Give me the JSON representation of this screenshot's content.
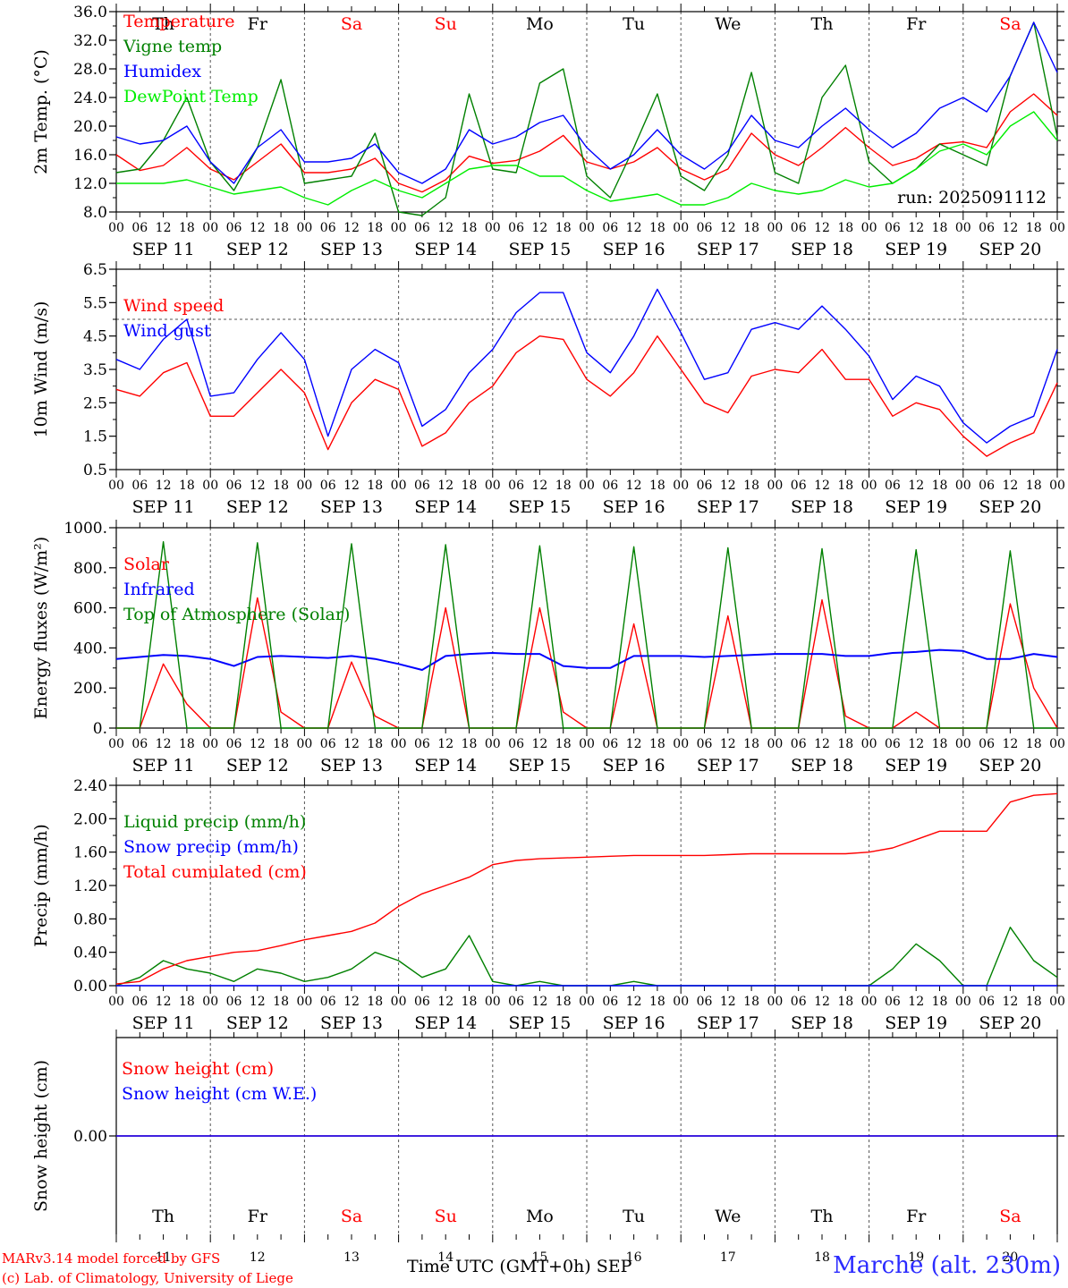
{
  "meta": {
    "run": "run: 2025091112",
    "station": "Marche (alt. 230m)",
    "credit_line1": "MARv3.14 model forced by GFS",
    "credit_line2": "(c) Lab. of Climatology, University of Liege",
    "x_title": "Time UTC (GMT+0h)",
    "x_month": "SEP"
  },
  "colors": {
    "red": "#ff0000",
    "dark_green": "#008000",
    "blue": "#0000ff",
    "light_green": "#00ee00",
    "weekend": "#ff0000"
  },
  "days": [
    {
      "abbr": "Th",
      "date": "SEP 11",
      "num": "11",
      "weekend": false
    },
    {
      "abbr": "Fr",
      "date": "SEP 12",
      "num": "12",
      "weekend": false
    },
    {
      "abbr": "Sa",
      "date": "SEP 13",
      "num": "13",
      "weekend": true
    },
    {
      "abbr": "Su",
      "date": "SEP 14",
      "num": "14",
      "weekend": true
    },
    {
      "abbr": "Mo",
      "date": "SEP 15",
      "num": "15",
      "weekend": false
    },
    {
      "abbr": "Tu",
      "date": "SEP 16",
      "num": "16",
      "weekend": false
    },
    {
      "abbr": "We",
      "date": "SEP 17",
      "num": "17",
      "weekend": false
    },
    {
      "abbr": "Th",
      "date": "SEP 18",
      "num": "18",
      "weekend": false
    },
    {
      "abbr": "Fr",
      "date": "SEP 19",
      "num": "19",
      "weekend": false
    },
    {
      "abbr": "Sa",
      "date": "SEP 20",
      "num": "20",
      "weekend": true
    }
  ],
  "hour_labels": [
    "00",
    "06",
    "12",
    "18"
  ],
  "chart_data": [
    {
      "id": "temp",
      "type": "line",
      "ylabel": "2m Temp. (°C)",
      "ylim": [
        8,
        36
      ],
      "yticks": [
        "8.0",
        "12.0",
        "16.0",
        "20.0",
        "24.0",
        "28.0",
        "32.0",
        "36.0"
      ],
      "x": {
        "start": "2025-09-11 00:00",
        "end": "2025-09-21 00:00",
        "step_hours": 6
      },
      "series": [
        {
          "name": "Temperature",
          "color": "red",
          "values": [
            16,
            13.8,
            14.5,
            17,
            14,
            12.5,
            15,
            17.5,
            13.5,
            13.5,
            14,
            15.5,
            12,
            10.8,
            12.5,
            15.8,
            14.8,
            15.2,
            16.5,
            18.7,
            15,
            14,
            15,
            17,
            14,
            12.5,
            14,
            19,
            16,
            14.5,
            17,
            19.8,
            17,
            14.5,
            15.5,
            17.5,
            17.8,
            17,
            22,
            24.5,
            21.5
          ]
        },
        {
          "name": "Vigne temp",
          "color": "dark_green",
          "values": [
            13.5,
            14,
            18,
            24,
            15,
            11,
            17,
            26.5,
            12,
            12.5,
            13,
            19,
            8,
            7.5,
            10,
            24.5,
            14,
            13.5,
            26,
            28,
            13,
            10,
            17,
            24.5,
            13,
            11,
            16,
            27.5,
            13.5,
            12,
            24,
            28.5,
            15,
            12,
            14,
            17.5,
            16,
            14.5,
            27,
            34.5,
            18.5
          ]
        },
        {
          "name": "Humidex",
          "color": "blue",
          "values": [
            18.5,
            17.5,
            18,
            20,
            15,
            12,
            17,
            19.5,
            15,
            15,
            15.5,
            17.5,
            13.5,
            12,
            14,
            19.5,
            17.5,
            18.5,
            20.5,
            21.5,
            17,
            14,
            16,
            19.5,
            16,
            14,
            16.5,
            21.5,
            18,
            17,
            20,
            22.5,
            19.5,
            17,
            19,
            22.5,
            24,
            22,
            27,
            34.5,
            27.5
          ]
        },
        {
          "name": "DewPoint Temp",
          "color": "light_green",
          "values": [
            12,
            12,
            12,
            12.5,
            11.5,
            10.5,
            11,
            11.5,
            10,
            9,
            11,
            12.5,
            11,
            10,
            12,
            14,
            14.5,
            14.5,
            13,
            13,
            11,
            9.5,
            10,
            10.5,
            9,
            9,
            10,
            12,
            11,
            10.5,
            11,
            12.5,
            11.5,
            12,
            14,
            16.5,
            17.5,
            16,
            20,
            22,
            18
          ]
        }
      ]
    },
    {
      "id": "wind",
      "type": "line",
      "ylabel": "10m Wind (m/s)",
      "ylim": [
        0.5,
        6.5
      ],
      "yticks": [
        "0.5",
        "1.5",
        "2.5",
        "3.5",
        "4.5",
        "5.5",
        "6.5"
      ],
      "reference_line": 5,
      "x": {
        "start": "2025-09-11 00:00",
        "end": "2025-09-21 00:00",
        "step_hours": 6
      },
      "series": [
        {
          "name": "Wind speed",
          "color": "red",
          "values": [
            2.9,
            2.7,
            3.4,
            3.7,
            2.1,
            2.1,
            2.8,
            3.5,
            2.8,
            1.1,
            2.5,
            3.2,
            2.9,
            1.2,
            1.6,
            2.5,
            3.0,
            4.0,
            4.5,
            4.4,
            3.2,
            2.7,
            3.4,
            4.5,
            3.5,
            2.5,
            2.2,
            3.3,
            3.5,
            3.4,
            4.1,
            3.2,
            3.2,
            2.1,
            2.5,
            2.3,
            1.5,
            0.9,
            1.3,
            1.6,
            3.1
          ]
        },
        {
          "name": "Wind gust",
          "color": "blue",
          "values": [
            3.8,
            3.5,
            4.4,
            5.0,
            2.7,
            2.8,
            3.8,
            4.6,
            3.8,
            1.5,
            3.5,
            4.1,
            3.7,
            1.8,
            2.3,
            3.4,
            4.1,
            5.2,
            5.8,
            5.8,
            4.0,
            3.4,
            4.5,
            5.9,
            4.6,
            3.2,
            3.4,
            4.7,
            4.9,
            4.7,
            5.4,
            4.7,
            3.9,
            2.6,
            3.3,
            3.0,
            1.9,
            1.3,
            1.8,
            2.1,
            4.1
          ]
        }
      ]
    },
    {
      "id": "energy",
      "type": "line",
      "ylabel": "Energy fluxes (W/m²)",
      "ylim": [
        0,
        1000
      ],
      "yticks": [
        "0.",
        "200.",
        "400.",
        "600.",
        "800.",
        "1000."
      ],
      "x": {
        "start": "2025-09-11 00:00",
        "end": "2025-09-21 00:00",
        "step_hours": 6
      },
      "series": [
        {
          "name": "Solar",
          "color": "red",
          "values": [
            0,
            0,
            320,
            120,
            0,
            0,
            650,
            80,
            0,
            0,
            330,
            60,
            0,
            0,
            600,
            0,
            0,
            0,
            600,
            80,
            0,
            0,
            520,
            0,
            0,
            0,
            560,
            0,
            0,
            0,
            640,
            60,
            0,
            0,
            80,
            0,
            0,
            0,
            620,
            200,
            0
          ]
        },
        {
          "name": "Infrared",
          "color": "blue",
          "values": [
            345,
            355,
            365,
            360,
            345,
            310,
            355,
            360,
            355,
            350,
            360,
            345,
            320,
            290,
            360,
            370,
            375,
            370,
            370,
            310,
            300,
            300,
            360,
            360,
            360,
            355,
            360,
            365,
            370,
            370,
            370,
            360,
            360,
            375,
            380,
            390,
            385,
            345,
            345,
            370,
            355
          ]
        },
        {
          "name": "Top of Atmosphere (Solar)",
          "color": "dark_green",
          "values": [
            0,
            0,
            930,
            0,
            0,
            0,
            925,
            0,
            0,
            0,
            920,
            0,
            0,
            0,
            915,
            0,
            0,
            0,
            910,
            0,
            0,
            0,
            905,
            0,
            0,
            0,
            900,
            0,
            0,
            0,
            895,
            0,
            0,
            0,
            890,
            0,
            0,
            0,
            885,
            0,
            0
          ]
        }
      ]
    },
    {
      "id": "precip",
      "type": "line",
      "ylabel": "Precip (mm/h)",
      "ylim": [
        0,
        2.4
      ],
      "yticks": [
        "0.00",
        "0.40",
        "0.80",
        "1.20",
        "1.60",
        "2.00",
        "2.40"
      ],
      "x": {
        "start": "2025-09-11 00:00",
        "end": "2025-09-21 00:00",
        "step_hours": 6
      },
      "series": [
        {
          "name": "Liquid precip (mm/h)",
          "color": "dark_green",
          "values": [
            0,
            0.1,
            0.3,
            0.2,
            0.15,
            0.05,
            0.2,
            0.15,
            0.05,
            0.1,
            0.2,
            0.4,
            0.3,
            0.1,
            0.2,
            0.6,
            0.05,
            0,
            0.05,
            0,
            0,
            0,
            0.05,
            0,
            0,
            0,
            0,
            0,
            0,
            0,
            0,
            0,
            0,
            0.2,
            0.5,
            0.3,
            0,
            0,
            0.7,
            0.3,
            0.1
          ]
        },
        {
          "name": "Snow precip (mm/h)",
          "color": "blue",
          "values": [
            0,
            0,
            0,
            0,
            0,
            0,
            0,
            0,
            0,
            0,
            0,
            0,
            0,
            0,
            0,
            0,
            0,
            0,
            0,
            0,
            0,
            0,
            0,
            0,
            0,
            0,
            0,
            0,
            0,
            0,
            0,
            0,
            0,
            0,
            0,
            0,
            0,
            0,
            0,
            0,
            0
          ]
        },
        {
          "name": "Total cumulated (cm)",
          "color": "red",
          "values": [
            0.02,
            0.05,
            0.2,
            0.3,
            0.35,
            0.4,
            0.42,
            0.48,
            0.55,
            0.6,
            0.65,
            0.75,
            0.95,
            1.1,
            1.2,
            1.3,
            1.45,
            1.5,
            1.52,
            1.53,
            1.54,
            1.55,
            1.56,
            1.56,
            1.56,
            1.56,
            1.57,
            1.58,
            1.58,
            1.58,
            1.58,
            1.58,
            1.6,
            1.65,
            1.75,
            1.85,
            1.85,
            1.85,
            2.2,
            2.28,
            2.3
          ]
        }
      ]
    },
    {
      "id": "snow",
      "type": "line",
      "ylabel": "Snow height (cm)",
      "ylim": [
        -1,
        1
      ],
      "yticks": [
        "0.00"
      ],
      "x": {
        "start": "2025-09-11 00:00",
        "end": "2025-09-21 00:00",
        "step_hours": 6
      },
      "series": [
        {
          "name": "Snow height (cm)",
          "color": "red",
          "values": [
            0,
            0,
            0,
            0,
            0,
            0,
            0,
            0,
            0,
            0,
            0,
            0,
            0,
            0,
            0,
            0,
            0,
            0,
            0,
            0,
            0,
            0,
            0,
            0,
            0,
            0,
            0,
            0,
            0,
            0,
            0,
            0,
            0,
            0,
            0,
            0,
            0,
            0,
            0,
            0,
            0
          ]
        },
        {
          "name": "Snow height (cm W.E.)",
          "color": "blue",
          "values": [
            0,
            0,
            0,
            0,
            0,
            0,
            0,
            0,
            0,
            0,
            0,
            0,
            0,
            0,
            0,
            0,
            0,
            0,
            0,
            0,
            0,
            0,
            0,
            0,
            0,
            0,
            0,
            0,
            0,
            0,
            0,
            0,
            0,
            0,
            0,
            0,
            0,
            0,
            0,
            0,
            0
          ]
        }
      ]
    }
  ]
}
